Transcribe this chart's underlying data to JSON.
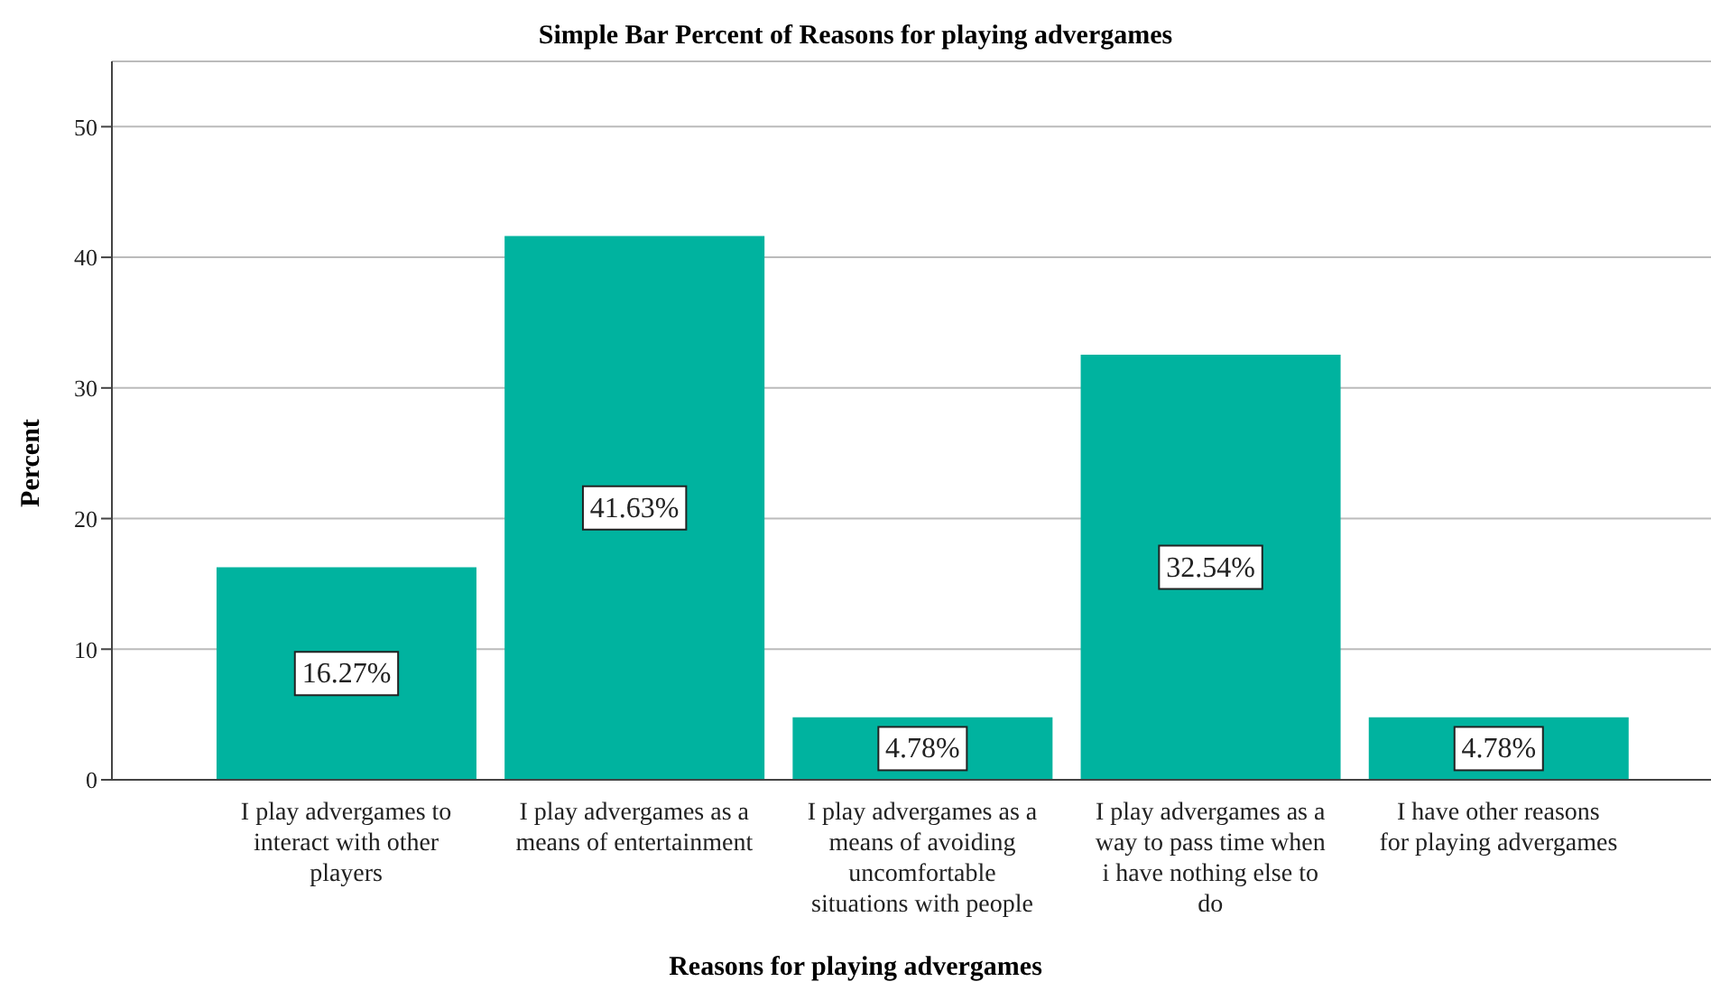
{
  "chart_data": {
    "type": "bar",
    "title": "Simple Bar Percent of Reasons for playing advergames",
    "xlabel": "Reasons for playing advergames",
    "ylabel": "Percent",
    "categories": [
      "I play advergames to interact with other players",
      "I play advergames as a means of entertainment",
      "I play advergames as a means of avoiding uncomfortable situations with people",
      "I play advergames as a way to pass time when i have nothing else to do",
      "I have other reasons for playing advergames"
    ],
    "values": [
      16.27,
      41.63,
      4.78,
      32.54,
      4.78
    ],
    "value_labels": [
      "16.27%",
      "41.63%",
      "4.78%",
      "32.54%",
      "4.78%"
    ],
    "color": "#00b39f",
    "ylim": [
      0,
      55
    ],
    "yticks": [
      0,
      10,
      20,
      30,
      40,
      50
    ],
    "grid": "y"
  }
}
